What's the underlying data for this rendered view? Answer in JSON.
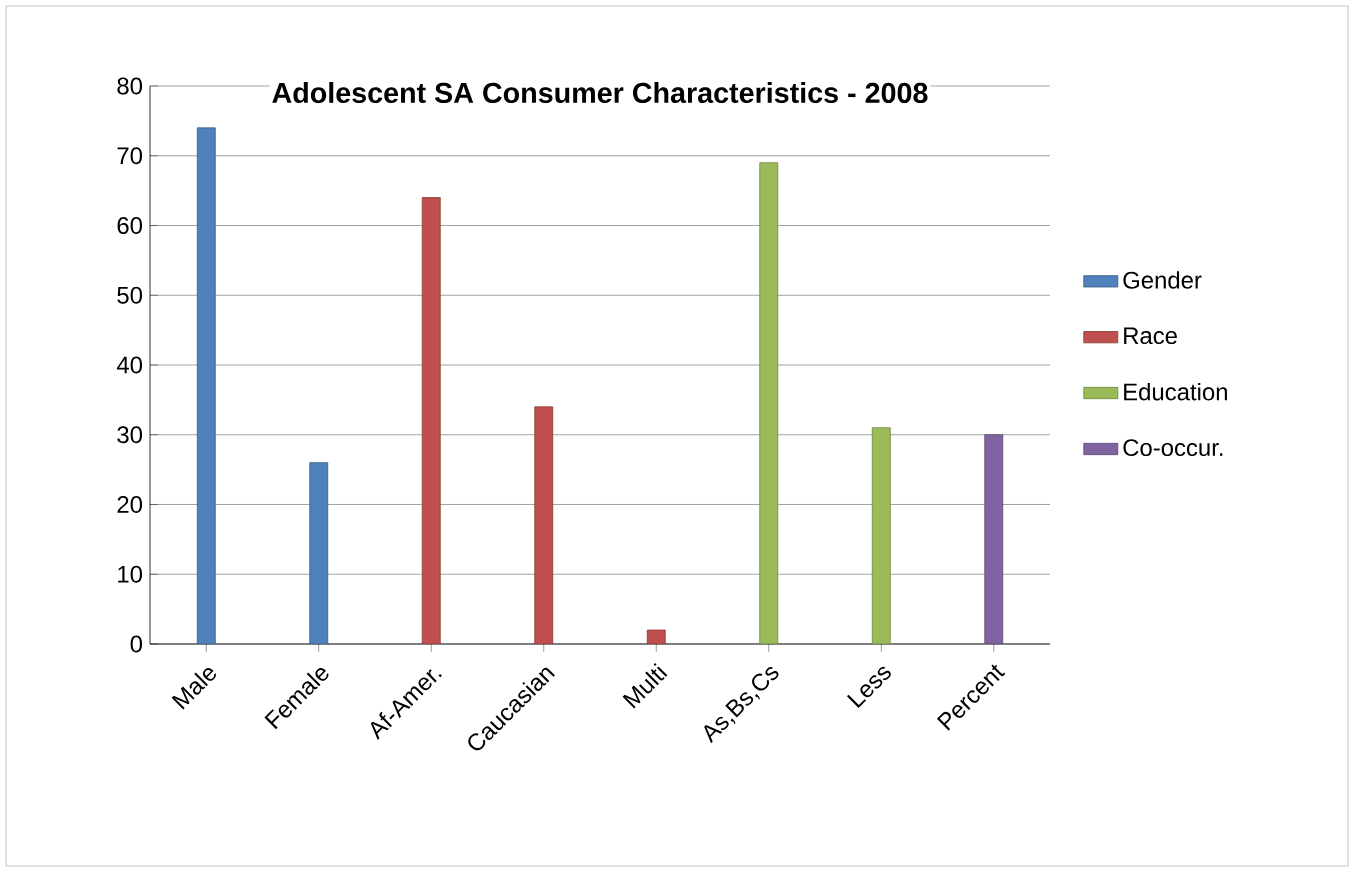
{
  "chart_data": {
    "type": "bar",
    "title": "Adolescent SA Consumer Characteristics - 2008",
    "categories": [
      "Male",
      "Female",
      "Af-Amer.",
      "Caucasian",
      "Multi",
      "As,Bs,Cs",
      "Less",
      "Percent"
    ],
    "series": [
      {
        "name": "Gender",
        "color": "#4f81bd",
        "values": [
          74,
          26,
          null,
          null,
          null,
          null,
          null,
          null
        ]
      },
      {
        "name": "Race",
        "color": "#c0504d",
        "values": [
          null,
          null,
          64,
          34,
          2,
          null,
          null,
          null
        ]
      },
      {
        "name": "Education",
        "color": "#9bbb59",
        "values": [
          null,
          null,
          null,
          null,
          null,
          69,
          31,
          null
        ]
      },
      {
        "name": "Co-occur.",
        "color": "#8064a2",
        "values": [
          null,
          null,
          null,
          null,
          null,
          null,
          null,
          30
        ]
      }
    ],
    "ylim": [
      0,
      80
    ],
    "yticks": [
      0,
      10,
      20,
      30,
      40,
      50,
      60,
      70,
      80
    ],
    "grid": "y",
    "legend": "right"
  }
}
